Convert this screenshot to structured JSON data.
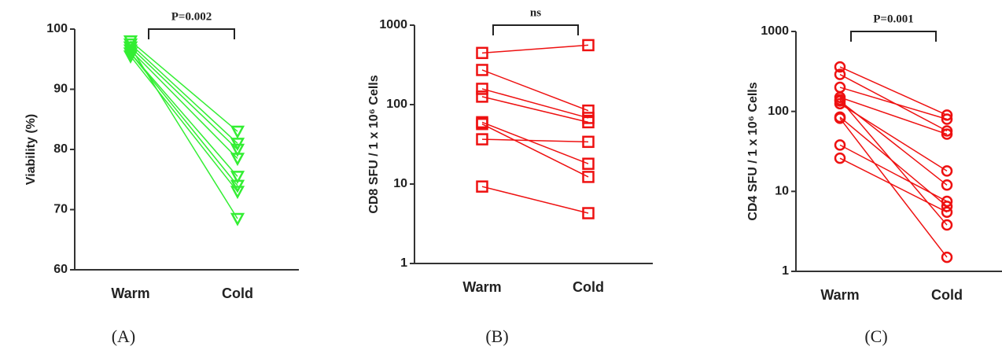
{
  "chart_data": [
    {
      "type": "line",
      "caption": "(A)",
      "ylabel": "Viability  (%)",
      "annotation": "P=0.002",
      "categories": [
        "Warm",
        "Cold"
      ],
      "marker": "triangle-down",
      "log": false,
      "ylim": [
        60,
        100
      ],
      "yticks": [
        60,
        70,
        80,
        90,
        100
      ],
      "series": [
        {
          "color": "#33ee33",
          "values": [
            98,
            83
          ]
        },
        {
          "color": "#33ee33",
          "values": [
            97.5,
            81
          ]
        },
        {
          "color": "#33ee33",
          "values": [
            97,
            80
          ]
        },
        {
          "color": "#33ee33",
          "values": [
            96.5,
            78.5
          ]
        },
        {
          "color": "#33ee33",
          "values": [
            96,
            75.5
          ]
        },
        {
          "color": "#33ee33",
          "values": [
            96,
            74
          ]
        },
        {
          "color": "#33ee33",
          "values": [
            95.5,
            73
          ]
        },
        {
          "color": "#33ee33",
          "values": [
            97,
            68.5
          ]
        }
      ]
    },
    {
      "type": "line",
      "caption": "(B)",
      "ylabel": "CD8   SFU  /  1 x 10⁶  Cells",
      "annotation": "ns",
      "categories": [
        "Warm",
        "Cold"
      ],
      "marker": "square",
      "log": true,
      "ylim": [
        1,
        1000
      ],
      "yticks": [
        1,
        10,
        100,
        1000
      ],
      "series": [
        {
          "color": "#ee1111",
          "values": [
            447,
            560
          ]
        },
        {
          "color": "#ee1111",
          "values": [
            273,
            84
          ]
        },
        {
          "color": "#ee1111",
          "values": [
            158,
            68
          ]
        },
        {
          "color": "#ee1111",
          "values": [
            126,
            60
          ]
        },
        {
          "color": "#ee1111",
          "values": [
            60,
            18
          ]
        },
        {
          "color": "#ee1111",
          "values": [
            57,
            12.3
          ]
        },
        {
          "color": "#ee1111",
          "values": [
            36.6,
            34
          ]
        },
        {
          "color": "#ee1111",
          "values": [
            9.3,
            4.3
          ]
        }
      ]
    },
    {
      "type": "line",
      "caption": "(C)",
      "ylabel": "CD4 SFU  /  1 x 10⁶  Cells",
      "annotation": "P=0.001",
      "categories": [
        "Warm",
        "Cold"
      ],
      "marker": "circle",
      "log": true,
      "ylim": [
        1,
        1000
      ],
      "yticks": [
        1,
        10,
        100,
        1000
      ],
      "series": [
        {
          "color": "#ee1111",
          "values": [
            360,
            90
          ]
        },
        {
          "color": "#ee1111",
          "values": [
            290,
            57
          ]
        },
        {
          "color": "#ee1111",
          "values": [
            200,
            80
          ]
        },
        {
          "color": "#ee1111",
          "values": [
            150,
            52
          ]
        },
        {
          "color": "#ee1111",
          "values": [
            135,
            12
          ]
        },
        {
          "color": "#ee1111",
          "values": [
            125,
            18
          ]
        },
        {
          "color": "#ee1111",
          "values": [
            140,
            3.8
          ]
        },
        {
          "color": "#ee1111",
          "values": [
            85,
            6.5
          ]
        },
        {
          "color": "#ee1111",
          "values": [
            82,
            1.5
          ]
        },
        {
          "color": "#ee1111",
          "values": [
            38,
            7.5
          ]
        },
        {
          "color": "#ee1111",
          "values": [
            26,
            5.5
          ]
        }
      ]
    }
  ]
}
